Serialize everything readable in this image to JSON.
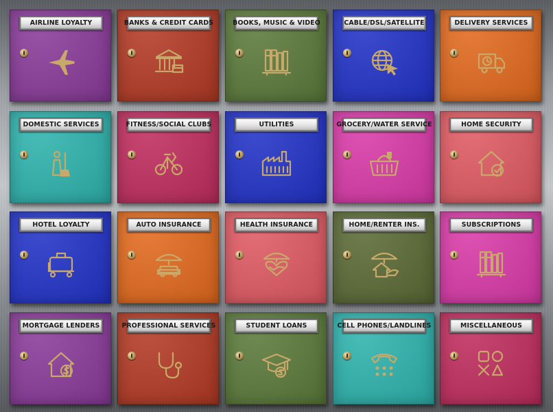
{
  "colors": {
    "purple": "#8a3a9a",
    "rust": "#b33a24",
    "green": "#5b7a3a",
    "blue": "#2233c8",
    "orange": "#e26a1e",
    "teal": "#2fb3ad",
    "raspberry": "#c02e5e",
    "magenta": "#d93aa8",
    "coral": "#e05a63",
    "darkgreen": "#5a6a35",
    "accent_icon": "#c9a96a"
  },
  "categories": [
    {
      "label": "AIRLINE LOYALTY",
      "icon": "airplane-icon",
      "color": "purple"
    },
    {
      "label": "BANKS & CREDIT CARDS",
      "icon": "bank-icon",
      "color": "rust"
    },
    {
      "label": "BOOKS, MUSIC & VIDEO",
      "icon": "books-icon",
      "color": "green"
    },
    {
      "label": "CABLE/DSL/SATELLITE",
      "icon": "globe-cursor-icon",
      "color": "blue"
    },
    {
      "label": "DELIVERY SERVICES",
      "icon": "delivery-truck-icon",
      "color": "orange"
    },
    {
      "label": "DOMESTIC SERVICES",
      "icon": "housekeeper-icon",
      "color": "teal"
    },
    {
      "label": "FITNESS/SOCIAL CLUBS",
      "icon": "exercise-bike-icon",
      "color": "raspberry"
    },
    {
      "label": "UTILITIES",
      "icon": "factory-icon",
      "color": "blue"
    },
    {
      "label": "GROCERY/WATER SERVICE",
      "icon": "shopping-basket-icon",
      "color": "magenta"
    },
    {
      "label": "HOME SECURITY",
      "icon": "house-check-icon",
      "color": "coral"
    },
    {
      "label": "HOTEL LOYALTY",
      "icon": "luggage-cart-icon",
      "color": "blue"
    },
    {
      "label": "AUTO INSURANCE",
      "icon": "car-umbrella-icon",
      "color": "orange"
    },
    {
      "label": "HEALTH INSURANCE",
      "icon": "heart-umbrella-icon",
      "color": "coral"
    },
    {
      "label": "HOME/RENTER INS.",
      "icon": "house-umbrella-icon",
      "color": "darkgreen"
    },
    {
      "label": "SUBSCRIPTIONS",
      "icon": "books-icon",
      "color": "magenta"
    },
    {
      "label": "MORTGAGE LENDERS",
      "icon": "house-dollar-icon",
      "color": "purple"
    },
    {
      "label": "PROFESSIONAL SERVICES",
      "icon": "stethoscope-icon",
      "color": "rust"
    },
    {
      "label": "STUDENT LOANS",
      "icon": "graduation-cap-dollar-icon",
      "color": "green"
    },
    {
      "label": "CELL PHONES/LANDLINES",
      "icon": "telephone-icon",
      "color": "teal"
    },
    {
      "label": "MISCELLANEOUS",
      "icon": "shapes-icon",
      "color": "raspberry"
    }
  ]
}
